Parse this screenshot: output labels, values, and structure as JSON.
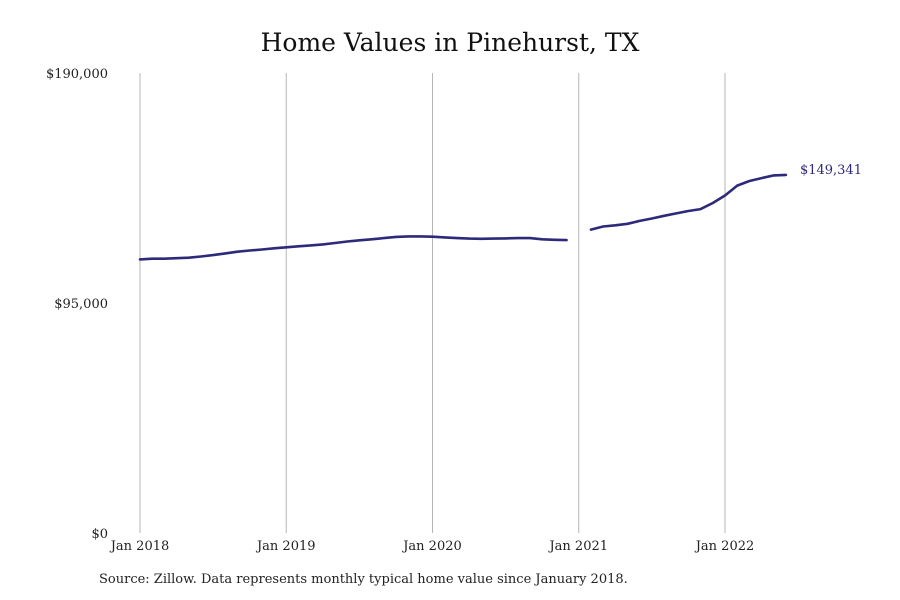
{
  "chart_data": {
    "type": "line",
    "title": "Home Values in Pinehurst, TX",
    "xlabel": "",
    "ylabel": "",
    "x_ticks": [
      "Jan 2018",
      "Jan 2019",
      "Jan 2020",
      "Jan 2021",
      "Jan 2022"
    ],
    "y_ticks": [
      "$0",
      "$95,000",
      "$190,000"
    ],
    "ylim": [
      0,
      190000
    ],
    "xlim": [
      "2017-12",
      "2022-08"
    ],
    "grid": "vertical",
    "legend": "none",
    "line_color": "#2e2a7a",
    "end_label": "$149,341",
    "series": [
      {
        "values": [
          {
            "x": "2018-01",
            "y": 113000
          },
          {
            "x": "2018-02",
            "y": 113300
          },
          {
            "x": "2018-03",
            "y": 113300
          },
          {
            "x": "2018-04",
            "y": 113500
          },
          {
            "x": "2018-05",
            "y": 113700
          },
          {
            "x": "2018-06",
            "y": 114200
          },
          {
            "x": "2018-07",
            "y": 114800
          },
          {
            "x": "2018-08",
            "y": 115500
          },
          {
            "x": "2018-09",
            "y": 116200
          },
          {
            "x": "2018-10",
            "y": 116700
          },
          {
            "x": "2018-11",
            "y": 117100
          },
          {
            "x": "2018-12",
            "y": 117600
          },
          {
            "x": "2019-01",
            "y": 118000
          },
          {
            "x": "2019-02",
            "y": 118400
          },
          {
            "x": "2019-03",
            "y": 118800
          },
          {
            "x": "2019-04",
            "y": 119200
          },
          {
            "x": "2019-05",
            "y": 119800
          },
          {
            "x": "2019-06",
            "y": 120400
          },
          {
            "x": "2019-07",
            "y": 120900
          },
          {
            "x": "2019-08",
            "y": 121300
          },
          {
            "x": "2019-09",
            "y": 121800
          },
          {
            "x": "2019-10",
            "y": 122300
          },
          {
            "x": "2019-11",
            "y": 122500
          },
          {
            "x": "2019-12",
            "y": 122500
          },
          {
            "x": "2020-01",
            "y": 122400
          },
          {
            "x": "2020-02",
            "y": 122100
          },
          {
            "x": "2020-03",
            "y": 121800
          },
          {
            "x": "2020-04",
            "y": 121600
          },
          {
            "x": "2020-05",
            "y": 121500
          },
          {
            "x": "2020-06",
            "y": 121600
          },
          {
            "x": "2020-07",
            "y": 121700
          },
          {
            "x": "2020-08",
            "y": 121800
          },
          {
            "x": "2020-09",
            "y": 121800
          },
          {
            "x": "2020-10",
            "y": 121300
          },
          {
            "x": "2020-11",
            "y": 121100
          },
          {
            "x": "2020-12",
            "y": 121000
          }
        ]
      },
      {
        "values": [
          {
            "x": "2021-02",
            "y": 125300
          },
          {
            "x": "2021-03",
            "y": 126600
          },
          {
            "x": "2021-04",
            "y": 127100
          },
          {
            "x": "2021-05",
            "y": 127700
          },
          {
            "x": "2021-06",
            "y": 128900
          },
          {
            "x": "2021-07",
            "y": 129900
          },
          {
            "x": "2021-08",
            "y": 131000
          },
          {
            "x": "2021-09",
            "y": 132000
          },
          {
            "x": "2021-10",
            "y": 133000
          },
          {
            "x": "2021-11",
            "y": 133800
          },
          {
            "x": "2021-12",
            "y": 136300
          },
          {
            "x": "2022-01",
            "y": 139400
          },
          {
            "x": "2022-02",
            "y": 143500
          },
          {
            "x": "2022-03",
            "y": 145400
          },
          {
            "x": "2022-04",
            "y": 146600
          },
          {
            "x": "2022-05",
            "y": 147700
          },
          {
            "x": "2022-06",
            "y": 147900
          }
        ]
      }
    ]
  },
  "footer": {
    "source": "Source: Zillow. Data represents monthly typical home value since January 2018."
  }
}
